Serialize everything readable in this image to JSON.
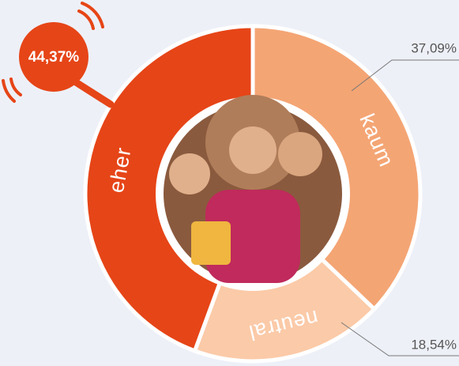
{
  "chart_data": {
    "type": "donut",
    "categories": [
      "kaum",
      "neutral",
      "eher"
    ],
    "values": [
      37.09,
      18.54,
      44.37
    ],
    "value_labels": [
      "37,09%",
      "18,54%",
      "44,37%"
    ],
    "colors": [
      "#f4a574",
      "#fbcaa8",
      "#e64517"
    ]
  }
}
